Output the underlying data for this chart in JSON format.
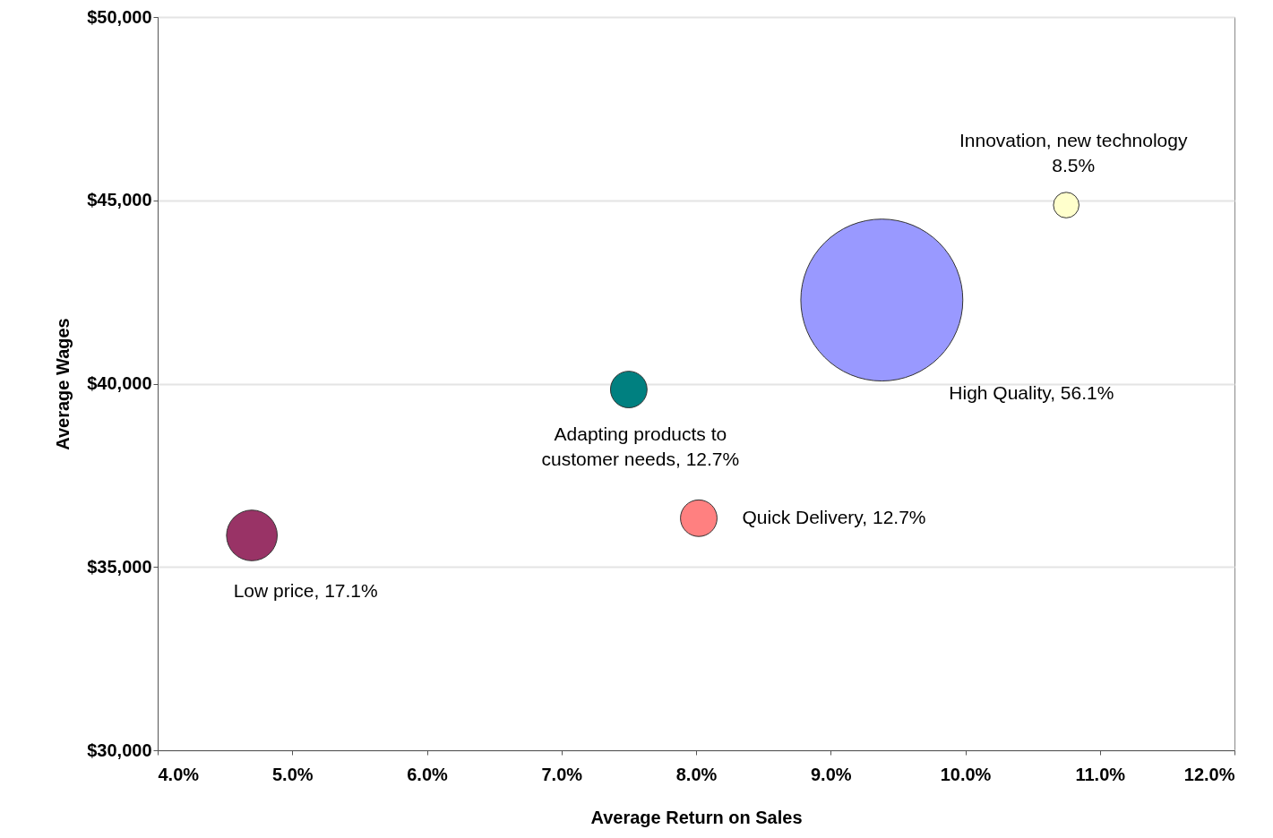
{
  "chart_data": {
    "type": "bubble",
    "xlabel": "Average Return on Sales",
    "ylabel": "Average Wages",
    "x": [
      4.7,
      7.5,
      8.02,
      9.38,
      10.75
    ],
    "values": [
      35860,
      39840,
      36330,
      42280,
      44870
    ],
    "sizes": [
      0.098,
      0.051,
      0.051,
      1,
      0.025
    ],
    "colors": [
      "#993366",
      "#008080",
      "#ff8080",
      "#9999ff",
      "#ffffcc"
    ],
    "xlim": [
      4,
      12
    ],
    "xticks": [
      {
        "value": 4,
        "label": "4.0%"
      },
      {
        "value": 5,
        "label": "5.0%"
      },
      {
        "value": 6,
        "label": "6.0%"
      },
      {
        "value": 7,
        "label": "7.0%"
      },
      {
        "value": 8,
        "label": "8.0%"
      },
      {
        "value": 9,
        "label": "9.0%"
      },
      {
        "value": 10,
        "label": "10.0%"
      },
      {
        "value": 11,
        "label": "11.0%"
      },
      {
        "value": 12,
        "label": "12.0%"
      }
    ],
    "ylim": [
      30000,
      50000
    ],
    "yticks": [
      {
        "value": 30000,
        "label": "$30,000"
      },
      {
        "value": 35000,
        "label": "$35,000"
      },
      {
        "value": 40000,
        "label": "$40,000"
      },
      {
        "value": 45000,
        "label": "$45,000"
      },
      {
        "value": 50000,
        "label": "$50,000"
      }
    ],
    "grid": "y",
    "annotations": [
      {
        "text": "Low price, 17.1%",
        "x": 4.7,
        "y": 35860
      },
      {
        "text": "Adapting products to\ncustomer needs, 12.7%",
        "x": 7.5,
        "y": 39840
      },
      {
        "text": "Quick Delivery, 12.7%",
        "x": 8.02,
        "y": 36330
      },
      "High Quality, 56.1%",
      {
        "text": "Innovation, new technology\n\n8.5%",
        "x": 10.75,
        "y": 44870
      }
    ]
  }
}
